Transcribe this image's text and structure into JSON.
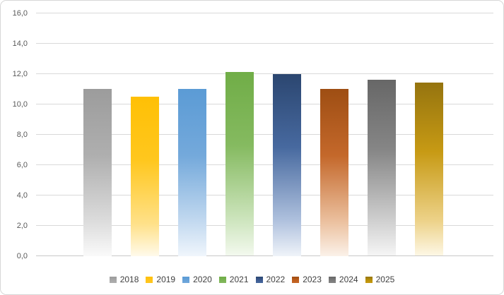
{
  "chart": {
    "title": "",
    "border_color": "#d7d7d7",
    "gridline_color": "#d9d9d9",
    "tick_label_color": "#595959",
    "legend_label_color": "#404040"
  },
  "chart_data": {
    "type": "bar",
    "title": "",
    "xlabel": "",
    "ylabel": "",
    "categories": [
      "2018",
      "2019",
      "2020",
      "2021",
      "2022",
      "2023",
      "2024",
      "2025"
    ],
    "values": [
      11.0,
      10.5,
      11.0,
      12.1,
      12.0,
      11.0,
      11.6,
      11.4
    ],
    "ylim": [
      0,
      16
    ],
    "ytick_step": 2,
    "decimal_separator": ",",
    "yticks": [
      {
        "value": 0,
        "label": "0,0"
      },
      {
        "value": 2,
        "label": "2,0"
      },
      {
        "value": 4,
        "label": "4,0"
      },
      {
        "value": 6,
        "label": "6,0"
      },
      {
        "value": 8,
        "label": "8,0"
      },
      {
        "value": 10,
        "label": "10,0"
      },
      {
        "value": 12,
        "label": "12,0"
      },
      {
        "value": 14,
        "label": "14,0"
      },
      {
        "value": 16,
        "label": "16,0"
      }
    ],
    "grid": true,
    "legend_position": "bottom",
    "bar_styles": [
      {
        "top": "#9c9c9c",
        "mid": "#afafaf",
        "light": "#dddddd",
        "fade": "#fafafa",
        "legend": "#a8a8a8"
      },
      {
        "top": "#ffc005",
        "mid": "#ffc71e",
        "light": "#ffe18a",
        "fade": "#fffaeb",
        "legend": "#ffc41c"
      },
      {
        "top": "#5b9bd5",
        "mid": "#74a9db",
        "light": "#c4daf0",
        "fade": "#f0f6fc",
        "legend": "#67a2d9"
      },
      {
        "top": "#70ad47",
        "mid": "#85ba60",
        "light": "#cce4bc",
        "fade": "#f3f9ee",
        "legend": "#7bb354"
      },
      {
        "top": "#2b4670",
        "mid": "#47699f",
        "light": "#aec0dd",
        "fade": "#eff3f9",
        "legend": "#3e5c93"
      },
      {
        "top": "#9e4e13",
        "mid": "#c4682b",
        "light": "#ecc2a1",
        "fade": "#fbf1e9",
        "legend": "#c05e1c"
      },
      {
        "top": "#676767",
        "mid": "#868686",
        "light": "#cfcfcf",
        "fade": "#f5f5f5",
        "legend": "#7b7b7b"
      },
      {
        "top": "#95740f",
        "mid": "#c79a14",
        "light": "#edd289",
        "fade": "#fdf7e5",
        "legend": "#bc9208"
      }
    ]
  }
}
